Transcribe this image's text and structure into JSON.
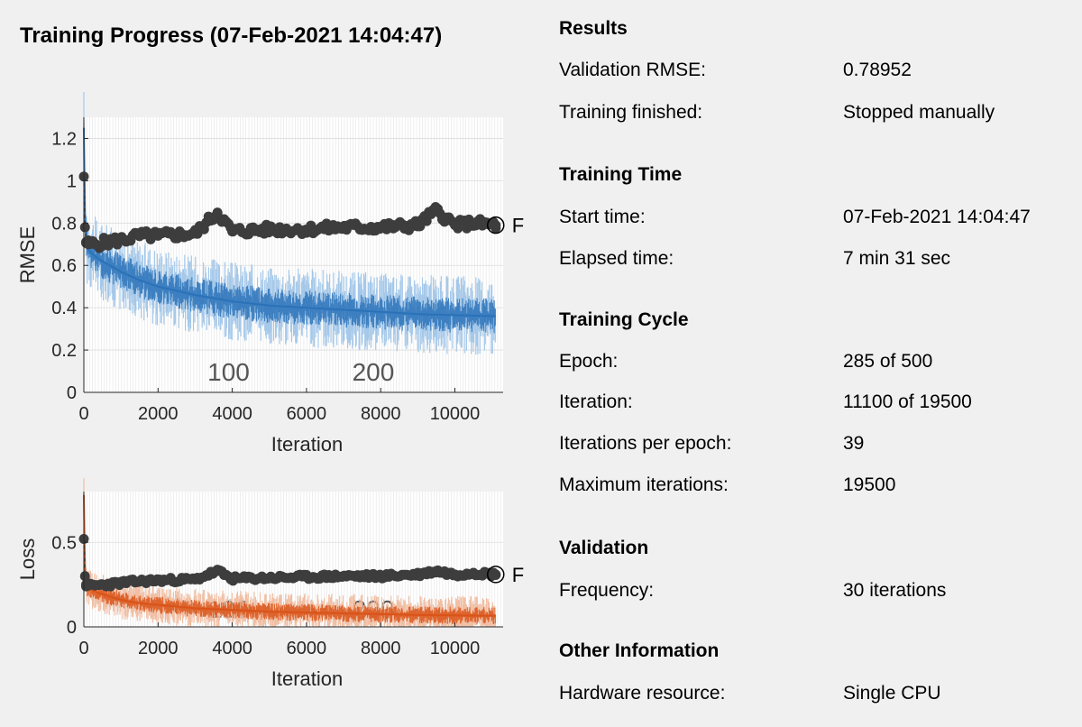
{
  "window": {
    "title": "Training Progress (07-Feb-2021 14:04:47)"
  },
  "chart_data": [
    {
      "type": "line",
      "xlabel": "Iteration",
      "ylabel": "RMSE",
      "xlim": [
        0,
        11300
      ],
      "ylim": [
        0,
        1.3
      ],
      "xticks": [
        0,
        2000,
        4000,
        6000,
        8000,
        10000
      ],
      "yticks": [
        0,
        0.2,
        0.4,
        0.6,
        0.8,
        1,
        1.2
      ],
      "xtick_labels": [
        "0",
        "2000",
        "4000",
        "6000",
        "8000",
        "10000"
      ],
      "ytick_labels": [
        "0",
        "0.2",
        "0.4",
        "0.6",
        "0.8",
        "1",
        "1.2"
      ],
      "epoch_labels": [
        {
          "epoch": "100",
          "iteration": 3900
        },
        {
          "epoch": "200",
          "iteration": 7800
        }
      ],
      "grid": true,
      "final_marker_label": "F",
      "colors": {
        "training": "#2a72b8",
        "training_light": "#9cc3e8",
        "validation": "#3d3d3d"
      },
      "series": [
        {
          "name": "",
          "role": "training",
          "x": [
            0,
            30,
            60,
            100,
            200,
            400,
            700,
            1000,
            1500,
            2000,
            3000,
            4000,
            5000,
            6000,
            7000,
            8000,
            9000,
            10000,
            11100
          ],
          "values": [
            1.25,
            0.85,
            0.72,
            0.68,
            0.66,
            0.63,
            0.6,
            0.57,
            0.53,
            0.5,
            0.46,
            0.43,
            0.41,
            0.4,
            0.39,
            0.38,
            0.37,
            0.365,
            0.36
          ]
        },
        {
          "name": "",
          "role": "validation",
          "x": [
            0,
            30,
            60,
            120,
            300,
            600,
            1000,
            1500,
            2000,
            3000,
            3600,
            4000,
            5000,
            6000,
            7000,
            8000,
            9000,
            9500,
            10000,
            10500,
            11100
          ],
          "values": [
            1.02,
            0.78,
            0.71,
            0.7,
            0.7,
            0.71,
            0.72,
            0.74,
            0.74,
            0.75,
            0.85,
            0.76,
            0.77,
            0.77,
            0.78,
            0.78,
            0.79,
            0.86,
            0.79,
            0.8,
            0.79
          ]
        }
      ]
    },
    {
      "type": "line",
      "xlabel": "Iteration",
      "ylabel": "Loss",
      "xlim": [
        0,
        11300
      ],
      "ylim": [
        0,
        0.8
      ],
      "xticks": [
        0,
        2000,
        4000,
        6000,
        8000,
        10000
      ],
      "yticks": [
        0,
        0.5
      ],
      "xtick_labels": [
        "0",
        "2000",
        "4000",
        "6000",
        "8000",
        "10000"
      ],
      "ytick_labels": [
        "0",
        "0.5"
      ],
      "epoch_labels": [
        {
          "epoch": "100",
          "iteration": 3900
        },
        {
          "epoch": "200",
          "iteration": 7800
        }
      ],
      "grid": true,
      "final_marker_label": "F",
      "colors": {
        "training": "#d95319",
        "training_light": "#f0b89a",
        "validation": "#3d3d3d"
      },
      "series": [
        {
          "name": "",
          "role": "training",
          "x": [
            0,
            30,
            60,
            100,
            200,
            400,
            700,
            1000,
            1500,
            2000,
            3000,
            4000,
            5000,
            6000,
            7000,
            8000,
            9000,
            10000,
            11100
          ],
          "values": [
            0.78,
            0.36,
            0.26,
            0.23,
            0.22,
            0.2,
            0.18,
            0.16,
            0.14,
            0.13,
            0.11,
            0.1,
            0.09,
            0.085,
            0.08,
            0.075,
            0.07,
            0.068,
            0.065
          ]
        },
        {
          "name": "",
          "role": "validation",
          "x": [
            0,
            30,
            60,
            120,
            300,
            600,
            1000,
            1500,
            2000,
            3000,
            3600,
            4000,
            5000,
            6000,
            7000,
            8000,
            9000,
            9500,
            10000,
            10500,
            11100
          ],
          "values": [
            0.52,
            0.3,
            0.25,
            0.245,
            0.245,
            0.25,
            0.26,
            0.27,
            0.275,
            0.28,
            0.33,
            0.285,
            0.29,
            0.295,
            0.3,
            0.3,
            0.31,
            0.33,
            0.31,
            0.32,
            0.31
          ]
        }
      ]
    }
  ],
  "info": {
    "sections": [
      {
        "title": "Results",
        "rows": [
          {
            "label": "Validation RMSE:",
            "value": "0.78952"
          },
          {
            "label": "Training finished:",
            "value": "Stopped manually"
          }
        ]
      },
      {
        "title": "Training Time",
        "rows": [
          {
            "label": "Start time:",
            "value": "07-Feb-2021 14:04:47"
          },
          {
            "label": "Elapsed time:",
            "value": "7 min 31 sec"
          }
        ]
      },
      {
        "title": "Training Cycle",
        "rows": [
          {
            "label": "Epoch:",
            "value": "285 of 500"
          },
          {
            "label": "Iteration:",
            "value": "11100 of 19500"
          },
          {
            "label": "Iterations per epoch:",
            "value": "39"
          },
          {
            "label": "Maximum iterations:",
            "value": "19500"
          }
        ]
      },
      {
        "title": "Validation",
        "rows": [
          {
            "label": "Frequency:",
            "value": "30 iterations"
          }
        ]
      },
      {
        "title": "Other Information",
        "rows": [
          {
            "label": "Hardware resource:",
            "value": "Single CPU"
          }
        ]
      }
    ]
  }
}
